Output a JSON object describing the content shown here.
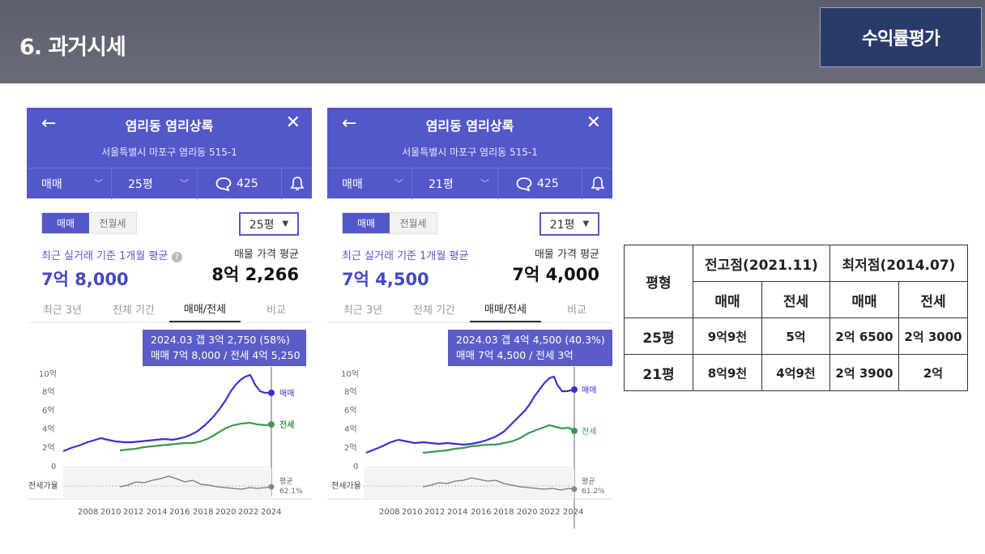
{
  "slide": {
    "title": "6. 과거시세",
    "badge": "수익률평가"
  },
  "panels": [
    {
      "name": "염리동 염리상록",
      "address": "서울특별시 마포구 염리동 515-1",
      "trade_type": "매매",
      "size": "25평",
      "comments": "425",
      "seg_on": "매매",
      "seg_off": "전월세",
      "dropdown": "25평",
      "recent_caption": "최근 실거래 기준 1개월 평균",
      "recent_value": "7억 8,000",
      "listing_caption": "매물 가격 평균",
      "listing_value": "8억 2,266",
      "tabs": [
        "최근 3년",
        "전체 기간",
        "매매/전세",
        "비교"
      ],
      "active_tab": 2,
      "tooltip_line1": "2024.03  갭 3억 2,750 (58%)",
      "tooltip_line2": "매매 7억 8,000 / 전세 4억 5,250",
      "chart": {
        "y_ticks": [
          "10억",
          "8억",
          "6억",
          "4억",
          "2억",
          "0"
        ],
        "x_ticks": [
          "2008",
          "2010",
          "2012",
          "2014",
          "2016",
          "2018",
          "2020",
          "2022",
          "2024"
        ],
        "sale_label": "매매",
        "jeonse_label": "전세",
        "ratio_label": "전세가율",
        "avg_label": "평균",
        "avg_value": "62.1%"
      }
    },
    {
      "name": "염리동 염리상록",
      "address": "서울특별시 마포구 염리동 515-1",
      "trade_type": "매매",
      "size": "21평",
      "comments": "425",
      "seg_on": "매매",
      "seg_off": "전월세",
      "dropdown": "21평",
      "recent_caption": "최근 실거래 기준 1개월 평균",
      "recent_value": "7억 4,500",
      "listing_caption": "매물 가격 평균",
      "listing_value": "7억 4,000",
      "tabs": [
        "최근 3년",
        "전체 기간",
        "매매/전세",
        "비교"
      ],
      "active_tab": 2,
      "tooltip_line1": "2024.03  갭 4억 4,500 (40.3%)",
      "tooltip_line2": "매매 7억 4,500 / 전세 3억",
      "chart": {
        "y_ticks": [
          "10억",
          "8억",
          "6억",
          "4억",
          "2억",
          "0"
        ],
        "x_ticks": [
          "2008",
          "2010",
          "2012",
          "2014",
          "2016",
          "2018",
          "2020",
          "2022",
          "2024"
        ],
        "sale_label": "매매",
        "jeonse_label": "전세",
        "ratio_label": "전세가율",
        "avg_label": "평균",
        "avg_value": "61.2%"
      }
    }
  ],
  "summary": {
    "col_type": "평형",
    "group_high": "전고점(2021.11)",
    "group_low": "최저점(2014.07)",
    "sub_sale": "매매",
    "sub_jeonse": "전세",
    "rows": [
      {
        "type": "25평",
        "high_sale": "9억9천",
        "high_jeonse": "5억",
        "low_sale": "2억 6500",
        "low_jeonse": "2억 3000"
      },
      {
        "type": "21평",
        "high_sale": "8억9천",
        "high_jeonse": "4억9천",
        "low_sale": "2억 3900",
        "low_jeonse": "2억"
      }
    ]
  },
  "colors": {
    "brand": "#5457c9",
    "sale_line": "#3b2fcf",
    "jeonse_line": "#3d9a4a",
    "ratio_line": "#777777"
  }
}
